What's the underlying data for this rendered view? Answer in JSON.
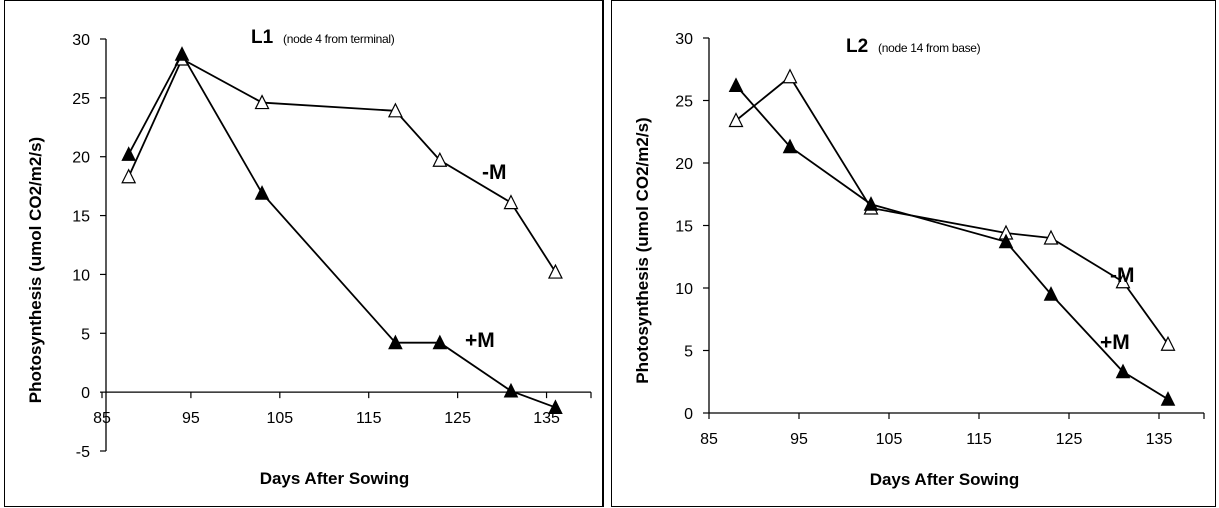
{
  "chart_data": [
    {
      "type": "line",
      "title": "L1",
      "subtitle": "(node 4 from terminal)",
      "xlabel": "Days After Sowing",
      "ylabel": "Photosynthesis (umol CO2/m2/s)",
      "xlim": [
        85,
        140
      ],
      "ylim": [
        -5,
        30
      ],
      "xticks": [
        85,
        95,
        105,
        115,
        125,
        135
      ],
      "yticks": [
        -5,
        0,
        5,
        10,
        15,
        20,
        25,
        30
      ],
      "grid": false,
      "series": [
        {
          "name": "-M",
          "marker": "open-triangle",
          "x": [
            88,
            94,
            103,
            118,
            123,
            131,
            136
          ],
          "y": [
            18.3,
            28.3,
            24.6,
            23.9,
            19.7,
            16.1,
            10.2
          ]
        },
        {
          "name": "+M",
          "marker": "filled-triangle",
          "x": [
            88,
            94,
            103,
            118,
            123,
            131,
            136
          ],
          "y": [
            20.2,
            28.7,
            16.9,
            4.2,
            4.2,
            0.1,
            -1.3
          ]
        }
      ]
    },
    {
      "type": "line",
      "title": "L2",
      "subtitle": "(node 14 from base)",
      "xlabel": "Days After Sowing",
      "ylabel": "Photosynthesis (umol CO2/m2/s)",
      "xlim": [
        85,
        140
      ],
      "ylim": [
        0,
        30
      ],
      "xticks": [
        85,
        95,
        105,
        115,
        125,
        135
      ],
      "yticks": [
        0,
        5,
        10,
        15,
        20,
        25,
        30
      ],
      "grid": false,
      "series": [
        {
          "name": "-M",
          "marker": "open-triangle",
          "x": [
            88,
            94,
            103,
            118,
            123,
            131,
            136
          ],
          "y": [
            23.4,
            26.9,
            16.4,
            14.4,
            14.0,
            10.5,
            5.5
          ]
        },
        {
          "name": "+M",
          "marker": "filled-triangle",
          "x": [
            88,
            94,
            103,
            118,
            123,
            131,
            136
          ],
          "y": [
            26.2,
            21.3,
            16.7,
            13.7,
            9.5,
            3.3,
            1.1
          ]
        }
      ]
    }
  ]
}
